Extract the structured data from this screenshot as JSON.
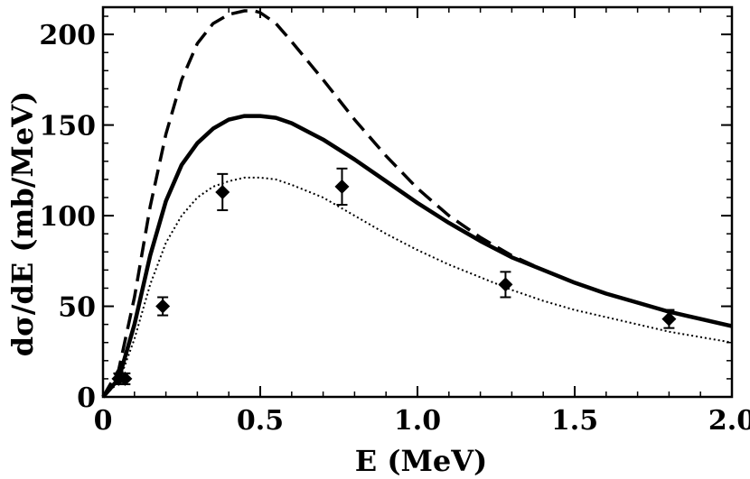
{
  "chart_data": {
    "type": "line",
    "title": "",
    "xlabel": "E (MeV)",
    "ylabel": "dσ/dE (mb/MeV)",
    "xlim": [
      0,
      2.0
    ],
    "ylim": [
      0,
      215
    ],
    "x_ticks": [
      0,
      0.5,
      1.0,
      1.5,
      2.0
    ],
    "x_tick_labels": [
      "0",
      "0.5",
      "1.0",
      "1.5",
      "2.0"
    ],
    "y_ticks": [
      0,
      50,
      100,
      150,
      200
    ],
    "y_tick_labels": [
      "0",
      "50",
      "100",
      "150",
      "200"
    ],
    "grid": false,
    "legend": "none",
    "series": [
      {
        "style": "dashed",
        "x": [
          0,
          0.05,
          0.1,
          0.15,
          0.2,
          0.25,
          0.3,
          0.35,
          0.4,
          0.45,
          0.48,
          0.5,
          0.55,
          0.6,
          0.7,
          0.8,
          0.9,
          1.0,
          1.1,
          1.2,
          1.3,
          1.4,
          1.5,
          1.6,
          1.7,
          1.8,
          1.9,
          2.0
        ],
        "y": [
          0,
          15,
          55,
          105,
          145,
          175,
          195,
          206,
          211,
          213,
          213,
          212,
          206,
          196,
          175,
          153,
          133,
          115,
          100,
          88,
          78,
          70,
          63,
          57,
          52,
          47,
          43,
          39
        ]
      },
      {
        "style": "solid",
        "x": [
          0,
          0.05,
          0.1,
          0.15,
          0.2,
          0.25,
          0.3,
          0.35,
          0.4,
          0.45,
          0.5,
          0.55,
          0.6,
          0.7,
          0.8,
          0.9,
          1.0,
          1.1,
          1.2,
          1.3,
          1.4,
          1.5,
          1.6,
          1.7,
          1.8,
          1.9,
          2.0
        ],
        "y": [
          0,
          10,
          40,
          78,
          108,
          128,
          140,
          148,
          153,
          155,
          155,
          154,
          151,
          142,
          131,
          119,
          107,
          96,
          86,
          77,
          70,
          63,
          57,
          52,
          47,
          43,
          39
        ]
      },
      {
        "style": "dotted",
        "x": [
          0,
          0.05,
          0.1,
          0.15,
          0.2,
          0.25,
          0.3,
          0.35,
          0.4,
          0.45,
          0.5,
          0.55,
          0.6,
          0.7,
          0.8,
          0.9,
          1.0,
          1.1,
          1.2,
          1.3,
          1.4,
          1.5,
          1.6,
          1.7,
          1.8,
          1.9,
          2.0
        ],
        "y": [
          0,
          8,
          32,
          62,
          85,
          100,
          110,
          116,
          119,
          121,
          121,
          120,
          117,
          110,
          100,
          90,
          81,
          73,
          66,
          59,
          53,
          48,
          44,
          40,
          36,
          33,
          30
        ]
      }
    ],
    "points": {
      "x": [
        0.05,
        0.07,
        0.19,
        0.38,
        0.76,
        1.28,
        1.8
      ],
      "y": [
        10,
        10,
        50,
        113,
        116,
        62,
        43
      ],
      "err": [
        3,
        3,
        5,
        10,
        10,
        7,
        5
      ]
    }
  }
}
